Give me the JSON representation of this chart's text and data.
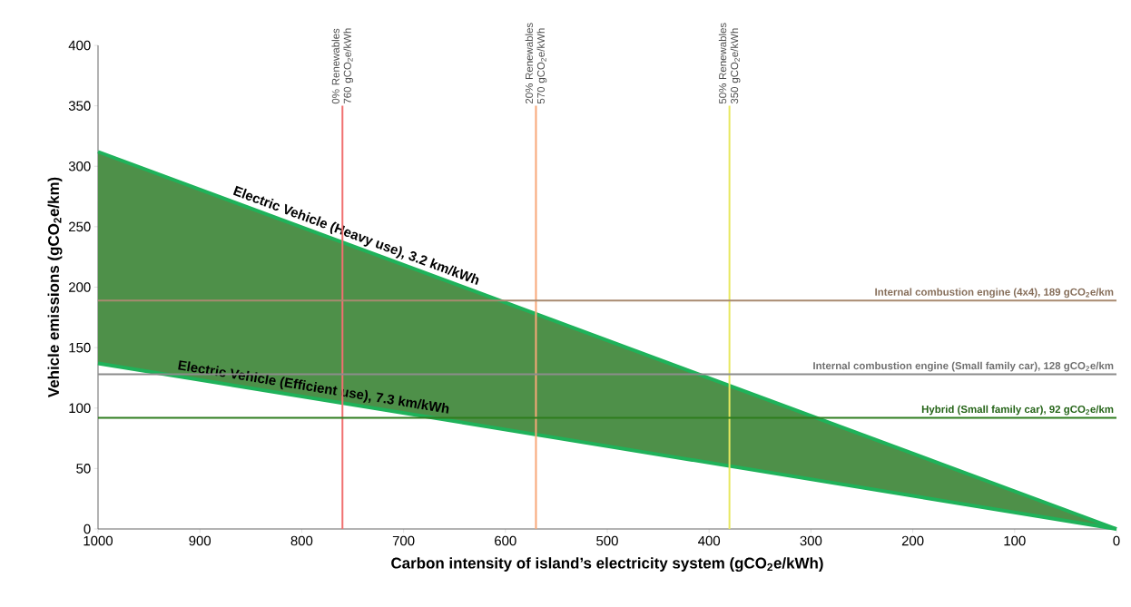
{
  "chart_data": {
    "type": "line",
    "xlabel": "Carbon intensity of island’s electricity system (gCO$_{2}$e/kWh)",
    "ylabel": "Vehicle emissions (gCO$_{2}$e/km)",
    "x": [
      1000,
      0
    ],
    "xlim": [
      1000,
      0
    ],
    "xticks": [
      1000,
      900,
      800,
      700,
      600,
      500,
      400,
      300,
      200,
      100,
      0
    ],
    "ylim": [
      0,
      400
    ],
    "yticks": [
      0,
      50,
      100,
      150,
      200,
      250,
      300,
      350,
      400
    ],
    "series": [
      {
        "name": "Electric Vehicle (Heavy use), 3.2 km/kWh",
        "color": "#1fb25a",
        "values": [
          312,
          0
        ],
        "lower": [
          137,
          0
        ],
        "upper": [
          312,
          0
        ]
      },
      {
        "name": "Electric Vehicle (Efficient use), 7.3 km/kWh",
        "color": "#1fb25a",
        "values": [
          137,
          0
        ]
      }
    ],
    "ref_lines": [
      {
        "axis": "x",
        "value": 760,
        "label": "0% Renewables 760 gCO$_{2}$e/kWh",
        "color": "#f07070"
      },
      {
        "axis": "x",
        "value": 570,
        "label": "20% Renewables 570 gCO$_{2}$e/kWh",
        "color": "#f8a878"
      },
      {
        "axis": "x",
        "value": 380,
        "label": "50% Renewables 350 gCO$_{2}$e/kWh",
        "color": "#e8e860"
      },
      {
        "axis": "y",
        "value": 189,
        "label": "Internal combustion engine (4x4), 189 gCO$_{2}$e/km",
        "color": "#a88a70"
      },
      {
        "axis": "y",
        "value": 128,
        "label": "Internal combustion engine (Small family car), 128 gCO$_{2}$e/km",
        "color": "#8c8c8c"
      },
      {
        "axis": "y",
        "value": 92,
        "label": "Hybrid (Small family car), 92 gCO$_{2}$e/km",
        "color": "#2e7d1e"
      }
    ],
    "grid": false
  }
}
